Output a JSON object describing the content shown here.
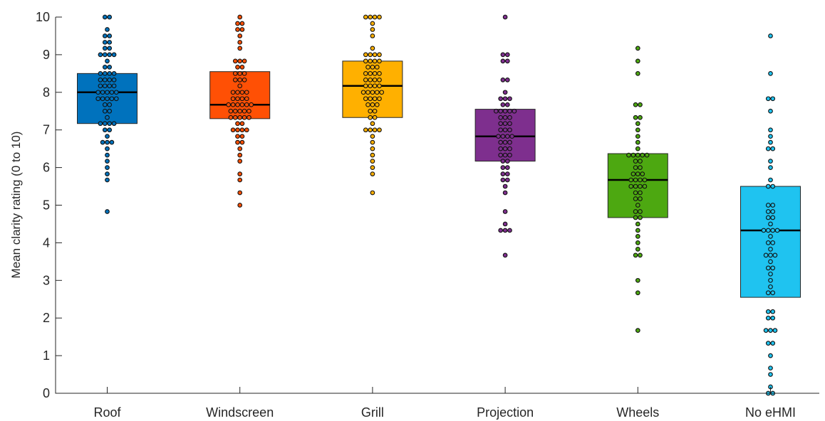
{
  "chart_data": {
    "type": "box",
    "ylabel": "Mean clarity rating (0 to 10)",
    "xlabel": "",
    "ylim": [
      0,
      10
    ],
    "yticks": [
      0,
      1,
      2,
      3,
      4,
      5,
      6,
      7,
      8,
      9,
      10
    ],
    "grid": false,
    "categories": [
      "Roof",
      "Windscreen",
      "Grill",
      "Projection",
      "Wheels",
      "No eHMI"
    ],
    "series": [
      {
        "category": "Roof",
        "color": "#0072BD",
        "q1": 7.17,
        "median": 8.0,
        "q3": 8.5,
        "points": [
          10,
          10,
          9.67,
          9.5,
          9.5,
          9.33,
          9.33,
          9.17,
          9.17,
          9,
          9,
          9,
          9,
          8.83,
          8.67,
          8.67,
          8.5,
          8.5,
          8.5,
          8.5,
          8.33,
          8.33,
          8.33,
          8.33,
          8.17,
          8.17,
          8.17,
          8.17,
          8,
          8,
          8,
          8,
          8,
          7.83,
          7.83,
          7.83,
          7.83,
          7.83,
          7.67,
          7.67,
          7.5,
          7.5,
          7.33,
          7.17,
          7.17,
          7.17,
          7.17,
          7,
          7,
          6.83,
          6.67,
          6.67,
          6.67,
          6.5,
          6.33,
          6.17,
          6,
          5.83,
          5.67,
          4.83
        ]
      },
      {
        "category": "Windscreen",
        "color": "#FF5005",
        "q1": 7.3,
        "median": 7.67,
        "q3": 8.55,
        "points": [
          10,
          9.83,
          9.83,
          9.67,
          9.67,
          9.5,
          9.33,
          9.17,
          8.83,
          8.83,
          8.83,
          8.67,
          8.67,
          8.5,
          8.5,
          8.5,
          8.33,
          8.33,
          8.33,
          8.17,
          8,
          8,
          8,
          8,
          7.83,
          7.83,
          7.83,
          7.83,
          7.67,
          7.67,
          7.67,
          7.67,
          7.67,
          7.67,
          7.5,
          7.5,
          7.5,
          7.5,
          7.5,
          7.33,
          7.33,
          7.33,
          7.33,
          7.33,
          7.17,
          7.17,
          7,
          7,
          7,
          7,
          6.83,
          6.83,
          6.67,
          6.67,
          6.5,
          6.33,
          6.17,
          5.83,
          5.67,
          5.33,
          5
        ]
      },
      {
        "category": "Grill",
        "color": "#FFB000",
        "q1": 7.33,
        "median": 8.17,
        "q3": 8.83,
        "points": [
          10,
          10,
          10,
          10,
          9.83,
          9.67,
          9.5,
          9.17,
          9,
          9,
          9,
          9,
          8.83,
          8.83,
          8.83,
          8.83,
          8.67,
          8.67,
          8.67,
          8.5,
          8.5,
          8.5,
          8.5,
          8.33,
          8.33,
          8.33,
          8.33,
          8.17,
          8.17,
          8.17,
          8.17,
          8,
          8,
          8,
          8,
          8,
          7.83,
          7.83,
          7.83,
          7.83,
          7.67,
          7.67,
          7.67,
          7.5,
          7.5,
          7.33,
          7.33,
          7.17,
          7,
          7,
          7,
          7,
          6.83,
          6.67,
          6.5,
          6.33,
          6.17,
          6,
          5.83,
          5.33
        ]
      },
      {
        "category": "Projection",
        "color": "#7E2F8E",
        "q1": 6.17,
        "median": 6.83,
        "q3": 7.55,
        "points": [
          10,
          9,
          9,
          8.83,
          8.83,
          8.33,
          8.33,
          8,
          7.83,
          7.83,
          7.83,
          7.67,
          7.67,
          7.5,
          7.5,
          7.5,
          7.5,
          7.5,
          7.33,
          7.33,
          7.33,
          7.17,
          7.17,
          7.17,
          7,
          7,
          7,
          6.83,
          6.83,
          6.83,
          6.83,
          6.67,
          6.67,
          6.67,
          6.5,
          6.5,
          6.5,
          6.33,
          6.33,
          6.33,
          6.17,
          6.17,
          6,
          6,
          5.83,
          5.83,
          5.67,
          5.67,
          5.5,
          5.33,
          4.83,
          4.5,
          4.33,
          4.33,
          4.33,
          3.67
        ]
      },
      {
        "category": "Wheels",
        "color": "#4DA811",
        "q1": 4.67,
        "median": 5.67,
        "q3": 6.37,
        "points": [
          9.17,
          8.83,
          8.5,
          7.67,
          7.67,
          7.33,
          7.33,
          7.17,
          7,
          6.83,
          6.67,
          6.5,
          6.33,
          6.33,
          6.33,
          6.33,
          6.33,
          6.17,
          6.17,
          6,
          6,
          5.83,
          5.83,
          5.83,
          5.67,
          5.67,
          5.67,
          5.67,
          5.5,
          5.5,
          5.5,
          5.5,
          5.33,
          5.33,
          5.17,
          5.17,
          5,
          4.83,
          4.83,
          4.67,
          4.67,
          4.5,
          4.33,
          4.17,
          4,
          3.83,
          3.67,
          3.67,
          3,
          2.67,
          1.67
        ]
      },
      {
        "category": "No eHMI",
        "color": "#1FC3F0",
        "q1": 2.55,
        "median": 4.33,
        "q3": 5.5,
        "points": [
          9.5,
          8.5,
          7.83,
          7.83,
          7.5,
          7,
          6.83,
          6.67,
          6.5,
          6.5,
          6.17,
          6,
          5.67,
          5.5,
          5.5,
          5,
          5,
          4.83,
          4.83,
          4.67,
          4.67,
          4.5,
          4.33,
          4.33,
          4.33,
          4.33,
          4.17,
          4,
          4,
          3.83,
          3.67,
          3.67,
          3.67,
          3.5,
          3.33,
          3.33,
          3.17,
          3,
          2.83,
          2.67,
          2.67,
          2.17,
          2.17,
          2,
          2,
          1.67,
          1.67,
          1.67,
          1.33,
          1.33,
          1,
          0.67,
          0.5,
          0.17,
          0,
          0
        ]
      }
    ]
  }
}
